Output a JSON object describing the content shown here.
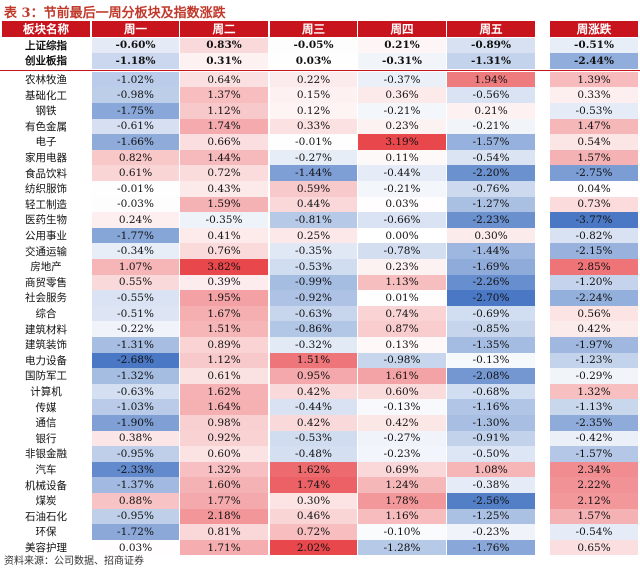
{
  "title": "表 3：节前最后一周分板块及指数涨跌",
  "headers": [
    "板块名称",
    "周一",
    "周二",
    "周三",
    "周四",
    "周五",
    "周涨跌"
  ],
  "indices": [
    {
      "name": "上证综指",
      "values": [
        "-0.60%",
        "0.83%",
        "-0.05%",
        "0.21%",
        "-0.89%",
        "-0.51%"
      ],
      "nums": [
        -0.6,
        0.83,
        -0.05,
        0.21,
        -0.89,
        -0.51
      ]
    },
    {
      "name": "创业板指",
      "values": [
        "-1.18%",
        "0.31%",
        "0.03%",
        "-0.31%",
        "-1.31%",
        "-2.44%"
      ],
      "nums": [
        -1.18,
        0.31,
        0.03,
        -0.31,
        -1.31,
        -2.44
      ]
    }
  ],
  "rows": [
    {
      "name": "农林牧渔",
      "values": [
        "-1.02%",
        "0.64%",
        "0.22%",
        "-0.37%",
        "1.94%",
        "1.39%"
      ],
      "nums": [
        -1.02,
        0.64,
        0.22,
        -0.37,
        1.94,
        1.39
      ]
    },
    {
      "name": "基础化工",
      "values": [
        "-0.98%",
        "1.37%",
        "0.15%",
        "0.36%",
        "-0.56%",
        "0.33%"
      ],
      "nums": [
        -0.98,
        1.37,
        0.15,
        0.36,
        -0.56,
        0.33
      ]
    },
    {
      "name": "钢铁",
      "values": [
        "-1.75%",
        "1.12%",
        "0.12%",
        "-0.21%",
        "0.21%",
        "-0.53%"
      ],
      "nums": [
        -1.75,
        1.12,
        0.12,
        -0.21,
        0.21,
        -0.53
      ]
    },
    {
      "name": "有色金属",
      "values": [
        "-0.61%",
        "1.74%",
        "0.33%",
        "0.23%",
        "-0.21%",
        "1.47%"
      ],
      "nums": [
        -0.61,
        1.74,
        0.33,
        0.23,
        -0.21,
        1.47
      ]
    },
    {
      "name": "电子",
      "values": [
        "-1.66%",
        "0.66%",
        "-0.01%",
        "3.19%",
        "-1.57%",
        "0.54%"
      ],
      "nums": [
        -1.66,
        0.66,
        -0.01,
        3.19,
        -1.57,
        0.54
      ]
    },
    {
      "name": "家用电器",
      "values": [
        "0.82%",
        "1.44%",
        "-0.27%",
        "0.11%",
        "-0.54%",
        "1.57%"
      ],
      "nums": [
        0.82,
        1.44,
        -0.27,
        0.11,
        -0.54,
        1.57
      ]
    },
    {
      "name": "食品饮料",
      "values": [
        "0.61%",
        "0.72%",
        "-1.44%",
        "-0.44%",
        "-2.20%",
        "-2.75%"
      ],
      "nums": [
        0.61,
        0.72,
        -1.44,
        -0.44,
        -2.2,
        -2.75
      ]
    },
    {
      "name": "纺织服饰",
      "values": [
        "-0.01%",
        "0.43%",
        "0.59%",
        "-0.21%",
        "-0.76%",
        "0.04%"
      ],
      "nums": [
        -0.01,
        0.43,
        0.59,
        -0.21,
        -0.76,
        0.04
      ]
    },
    {
      "name": "轻工制造",
      "values": [
        "-0.03%",
        "1.59%",
        "0.44%",
        "0.03%",
        "-1.27%",
        "0.73%"
      ],
      "nums": [
        -0.03,
        1.59,
        0.44,
        0.03,
        -1.27,
        0.73
      ]
    },
    {
      "name": "医药生物",
      "values": [
        "0.24%",
        "-0.35%",
        "-0.81%",
        "-0.66%",
        "-2.23%",
        "-3.77%"
      ],
      "nums": [
        0.24,
        -0.35,
        -0.81,
        -0.66,
        -2.23,
        -3.77
      ]
    },
    {
      "name": "公用事业",
      "values": [
        "-1.77%",
        "0.41%",
        "0.25%",
        "0.00%",
        "0.30%",
        "-0.82%"
      ],
      "nums": [
        -1.77,
        0.41,
        0.25,
        0.0,
        0.3,
        -0.82
      ]
    },
    {
      "name": "交通运输",
      "values": [
        "-0.34%",
        "0.76%",
        "-0.35%",
        "-0.78%",
        "-1.44%",
        "-2.15%"
      ],
      "nums": [
        -0.34,
        0.76,
        -0.35,
        -0.78,
        -1.44,
        -2.15
      ]
    },
    {
      "name": "房地产",
      "values": [
        "1.07%",
        "3.82%",
        "-0.53%",
        "0.23%",
        "-1.69%",
        "2.85%"
      ],
      "nums": [
        1.07,
        3.82,
        -0.53,
        0.23,
        -1.69,
        2.85
      ]
    },
    {
      "name": "商贸零售",
      "values": [
        "0.55%",
        "0.39%",
        "-0.99%",
        "1.13%",
        "-2.26%",
        "-1.20%"
      ],
      "nums": [
        0.55,
        0.39,
        -0.99,
        1.13,
        -2.26,
        -1.2
      ]
    },
    {
      "name": "社会服务",
      "values": [
        "-0.55%",
        "1.95%",
        "-0.92%",
        "0.01%",
        "-2.70%",
        "-2.24%"
      ],
      "nums": [
        -0.55,
        1.95,
        -0.92,
        0.01,
        -2.7,
        -2.24
      ]
    },
    {
      "name": "综合",
      "values": [
        "-0.51%",
        "1.67%",
        "-0.63%",
        "0.74%",
        "-0.69%",
        "0.56%"
      ],
      "nums": [
        -0.51,
        1.67,
        -0.63,
        0.74,
        -0.69,
        0.56
      ]
    },
    {
      "name": "建筑材料",
      "values": [
        "-0.22%",
        "1.51%",
        "-0.86%",
        "0.87%",
        "-0.85%",
        "0.42%"
      ],
      "nums": [
        -0.22,
        1.51,
        -0.86,
        0.87,
        -0.85,
        0.42
      ]
    },
    {
      "name": "建筑装饰",
      "values": [
        "-1.31%",
        "0.89%",
        "-0.32%",
        "0.13%",
        "-1.35%",
        "-1.97%"
      ],
      "nums": [
        -1.31,
        0.89,
        -0.32,
        0.13,
        -1.35,
        -1.97
      ]
    },
    {
      "name": "电力设备",
      "values": [
        "-2.68%",
        "1.12%",
        "1.51%",
        "-0.98%",
        "-0.13%",
        "-1.23%"
      ],
      "nums": [
        -2.68,
        1.12,
        1.51,
        -0.98,
        -0.13,
        -1.23
      ]
    },
    {
      "name": "国防军工",
      "values": [
        "-1.32%",
        "0.61%",
        "0.95%",
        "1.61%",
        "-2.08%",
        "-0.29%"
      ],
      "nums": [
        -1.32,
        0.61,
        0.95,
        1.61,
        -2.08,
        -0.29
      ]
    },
    {
      "name": "计算机",
      "values": [
        "-0.63%",
        "1.62%",
        "0.42%",
        "0.60%",
        "-0.68%",
        "1.32%"
      ],
      "nums": [
        -0.63,
        1.62,
        0.42,
        0.6,
        -0.68,
        1.32
      ]
    },
    {
      "name": "传媒",
      "values": [
        "-1.03%",
        "1.64%",
        "-0.44%",
        "-0.13%",
        "-1.16%",
        "-1.13%"
      ],
      "nums": [
        -1.03,
        1.64,
        -0.44,
        -0.13,
        -1.16,
        -1.13
      ]
    },
    {
      "name": "通信",
      "values": [
        "-1.90%",
        "0.98%",
        "0.42%",
        "0.42%",
        "-1.30%",
        "-2.35%"
      ],
      "nums": [
        -1.9,
        0.98,
        0.42,
        0.42,
        -1.3,
        -2.35
      ]
    },
    {
      "name": "银行",
      "values": [
        "0.38%",
        "0.92%",
        "-0.53%",
        "-0.27%",
        "-0.91%",
        "-0.42%"
      ],
      "nums": [
        0.38,
        0.92,
        -0.53,
        -0.27,
        -0.91,
        -0.42
      ]
    },
    {
      "name": "非银金融",
      "values": [
        "-0.95%",
        "0.60%",
        "-0.48%",
        "-0.23%",
        "-0.50%",
        "-1.57%"
      ],
      "nums": [
        -0.95,
        0.6,
        -0.48,
        -0.23,
        -0.5,
        -1.57
      ]
    },
    {
      "name": "汽车",
      "values": [
        "-2.33%",
        "1.32%",
        "1.62%",
        "0.69%",
        "1.08%",
        "2.34%"
      ],
      "nums": [
        -2.33,
        1.32,
        1.62,
        0.69,
        1.08,
        2.34
      ]
    },
    {
      "name": "机械设备",
      "values": [
        "-1.37%",
        "1.60%",
        "1.74%",
        "1.24%",
        "-0.38%",
        "2.22%"
      ],
      "nums": [
        -1.37,
        1.6,
        1.74,
        1.24,
        -0.38,
        2.22
      ]
    },
    {
      "name": "煤炭",
      "values": [
        "0.88%",
        "1.77%",
        "0.30%",
        "1.78%",
        "-2.56%",
        "2.12%"
      ],
      "nums": [
        0.88,
        1.77,
        0.3,
        1.78,
        -2.56,
        2.12
      ]
    },
    {
      "name": "石油石化",
      "values": [
        "-0.95%",
        "2.18%",
        "0.46%",
        "1.16%",
        "-1.25%",
        "1.57%"
      ],
      "nums": [
        -0.95,
        2.18,
        0.46,
        1.16,
        -1.25,
        1.57
      ]
    },
    {
      "name": "环保",
      "values": [
        "-1.72%",
        "0.81%",
        "0.72%",
        "-0.10%",
        "-0.23%",
        "-0.54%"
      ],
      "nums": [
        -1.72,
        0.81,
        0.72,
        -0.1,
        -0.23,
        -0.54
      ]
    },
    {
      "name": "美容护理",
      "values": [
        "0.03%",
        "1.71%",
        "2.02%",
        "-1.28%",
        "-1.76%",
        "0.65%"
      ],
      "nums": [
        0.03,
        1.71,
        2.02,
        -1.28,
        -1.76,
        0.65
      ]
    }
  ],
  "source": "资料来源：公司数据、招商证券",
  "colors": {
    "header": "#c8141c",
    "positive_max": "#e8474c",
    "negative_max": "#4a78c4",
    "neutral": "#ffffff"
  }
}
